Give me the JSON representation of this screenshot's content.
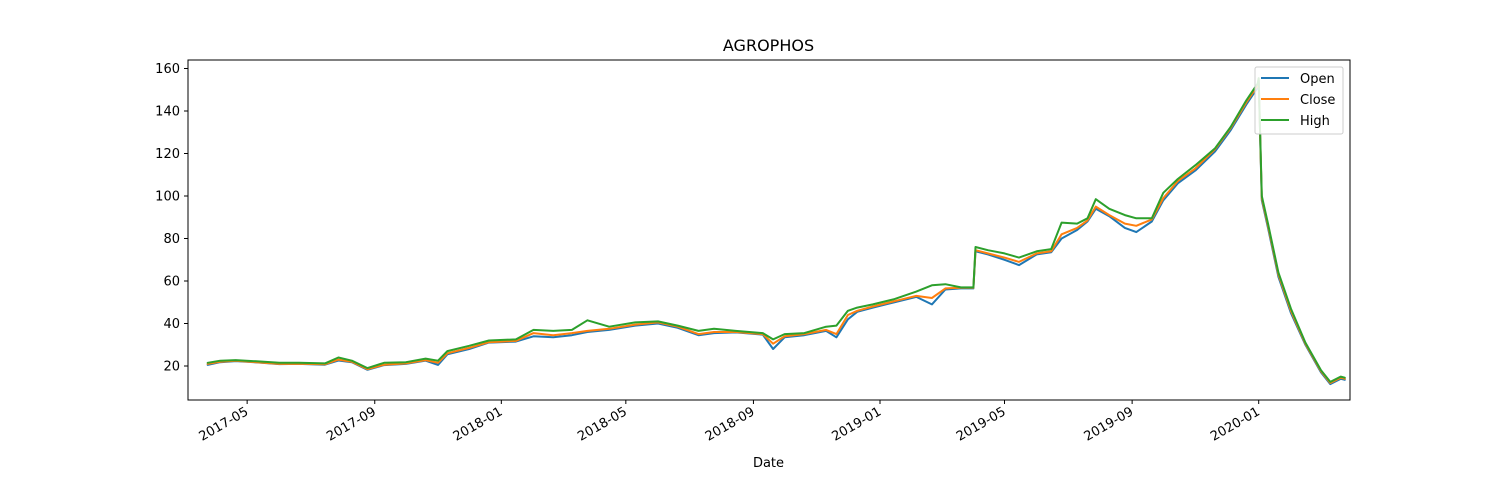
{
  "chart_data": {
    "type": "line",
    "title": "AGROPHOS",
    "xlabel": "Date",
    "ylabel": "",
    "x_axis_type": "date",
    "xlim": [
      "2017-03-05",
      "2020-03-29"
    ],
    "ylim": [
      4,
      164
    ],
    "yticks": [
      20,
      40,
      60,
      80,
      100,
      120,
      140,
      160
    ],
    "xticks": [
      {
        "date": "2017-05-01",
        "label": "2017-05"
      },
      {
        "date": "2017-09-01",
        "label": "2017-09"
      },
      {
        "date": "2018-01-01",
        "label": "2018-01"
      },
      {
        "date": "2018-05-01",
        "label": "2018-05"
      },
      {
        "date": "2018-09-01",
        "label": "2018-09"
      },
      {
        "date": "2019-01-01",
        "label": "2019-01"
      },
      {
        "date": "2019-05-01",
        "label": "2019-05"
      },
      {
        "date": "2019-09-01",
        "label": "2019-09"
      },
      {
        "date": "2020-01-01",
        "label": "2020-01"
      }
    ],
    "grid": false,
    "legend_position": "top-right",
    "series": [
      {
        "name": "Open",
        "color": "#1f77b4",
        "points": [
          [
            "2017-03-24",
            20.5
          ],
          [
            "2017-04-05",
            21.8
          ],
          [
            "2017-04-20",
            22.3
          ],
          [
            "2017-05-10",
            21.7
          ],
          [
            "2017-06-01",
            20.9
          ],
          [
            "2017-06-20",
            21.0
          ],
          [
            "2017-07-15",
            20.6
          ],
          [
            "2017-07-28",
            22.6
          ],
          [
            "2017-08-10",
            21.8
          ],
          [
            "2017-08-25",
            18.2
          ],
          [
            "2017-09-10",
            20.4
          ],
          [
            "2017-10-01",
            21.0
          ],
          [
            "2017-10-20",
            22.5
          ],
          [
            "2017-11-01",
            20.5
          ],
          [
            "2017-11-10",
            25.5
          ],
          [
            "2017-12-01",
            28.0
          ],
          [
            "2017-12-20",
            31.0
          ],
          [
            "2018-01-15",
            31.5
          ],
          [
            "2018-02-01",
            34.0
          ],
          [
            "2018-02-20",
            33.5
          ],
          [
            "2018-03-10",
            34.5
          ],
          [
            "2018-03-25",
            36.0
          ],
          [
            "2018-04-15",
            37.0
          ],
          [
            "2018-05-10",
            39.0
          ],
          [
            "2018-06-01",
            40.0
          ],
          [
            "2018-06-20",
            38.0
          ],
          [
            "2018-07-10",
            34.5
          ],
          [
            "2018-07-25",
            35.5
          ],
          [
            "2018-08-15",
            35.8
          ],
          [
            "2018-09-10",
            34.8
          ],
          [
            "2018-09-20",
            28.0
          ],
          [
            "2018-10-01",
            33.5
          ],
          [
            "2018-10-20",
            34.5
          ],
          [
            "2018-11-10",
            36.5
          ],
          [
            "2018-11-20",
            33.5
          ],
          [
            "2018-12-01",
            42.0
          ],
          [
            "2018-12-10",
            45.5
          ],
          [
            "2018-12-25",
            47.5
          ],
          [
            "2019-01-15",
            50.0
          ],
          [
            "2019-02-05",
            52.5
          ],
          [
            "2019-02-20",
            49.0
          ],
          [
            "2019-03-05",
            56.0
          ],
          [
            "2019-03-20",
            56.5
          ],
          [
            "2019-04-01",
            56.5
          ],
          [
            "2019-04-03",
            74.0
          ],
          [
            "2019-04-15",
            72.5
          ],
          [
            "2019-05-01",
            70.0
          ],
          [
            "2019-05-15",
            67.5
          ],
          [
            "2019-06-01",
            72.5
          ],
          [
            "2019-06-15",
            73.5
          ],
          [
            "2019-06-25",
            80.0
          ],
          [
            "2019-07-10",
            84.0
          ],
          [
            "2019-07-20",
            88.0
          ],
          [
            "2019-07-28",
            94.0
          ],
          [
            "2019-08-10",
            90.5
          ],
          [
            "2019-08-25",
            85.0
          ],
          [
            "2019-09-05",
            83.0
          ],
          [
            "2019-09-20",
            88.0
          ],
          [
            "2019-10-01",
            98.0
          ],
          [
            "2019-10-15",
            106.0
          ],
          [
            "2019-11-01",
            112.0
          ],
          [
            "2019-11-20",
            121.0
          ],
          [
            "2019-12-05",
            131.0
          ],
          [
            "2019-12-20",
            143.0
          ],
          [
            "2019-12-31",
            151.0
          ],
          [
            "2020-01-01",
            154.0
          ],
          [
            "2020-01-04",
            98.0
          ],
          [
            "2020-01-10",
            85.0
          ],
          [
            "2020-01-20",
            62.0
          ],
          [
            "2020-02-01",
            45.0
          ],
          [
            "2020-02-15",
            30.0
          ],
          [
            "2020-03-01",
            17.0
          ],
          [
            "2020-03-10",
            11.5
          ],
          [
            "2020-03-20",
            14.0
          ],
          [
            "2020-03-24",
            13.5
          ]
        ]
      },
      {
        "name": "Close",
        "color": "#ff7f0e",
        "points": [
          [
            "2017-03-24",
            21.0
          ],
          [
            "2017-04-05",
            22.0
          ],
          [
            "2017-04-20",
            22.5
          ],
          [
            "2017-05-10",
            21.8
          ],
          [
            "2017-06-01",
            21.0
          ],
          [
            "2017-06-20",
            21.1
          ],
          [
            "2017-07-15",
            20.8
          ],
          [
            "2017-07-28",
            23.0
          ],
          [
            "2017-08-10",
            22.0
          ],
          [
            "2017-08-25",
            18.5
          ],
          [
            "2017-09-10",
            20.6
          ],
          [
            "2017-10-01",
            21.2
          ],
          [
            "2017-10-20",
            22.8
          ],
          [
            "2017-11-01",
            21.5
          ],
          [
            "2017-11-10",
            26.0
          ],
          [
            "2017-12-01",
            28.5
          ],
          [
            "2017-12-20",
            31.2
          ],
          [
            "2018-01-15",
            31.8
          ],
          [
            "2018-02-01",
            35.5
          ],
          [
            "2018-02-20",
            34.5
          ],
          [
            "2018-03-10",
            35.5
          ],
          [
            "2018-03-25",
            36.5
          ],
          [
            "2018-04-15",
            37.5
          ],
          [
            "2018-05-10",
            39.5
          ],
          [
            "2018-06-01",
            40.5
          ],
          [
            "2018-06-20",
            38.5
          ],
          [
            "2018-07-10",
            35.0
          ],
          [
            "2018-07-25",
            36.0
          ],
          [
            "2018-08-15",
            36.0
          ],
          [
            "2018-09-10",
            35.0
          ],
          [
            "2018-09-20",
            30.5
          ],
          [
            "2018-10-01",
            34.0
          ],
          [
            "2018-10-20",
            35.0
          ],
          [
            "2018-11-10",
            37.0
          ],
          [
            "2018-11-20",
            35.0
          ],
          [
            "2018-12-01",
            44.0
          ],
          [
            "2018-12-10",
            46.0
          ],
          [
            "2018-12-25",
            48.0
          ],
          [
            "2019-01-15",
            50.5
          ],
          [
            "2019-02-05",
            53.0
          ],
          [
            "2019-02-20",
            52.0
          ],
          [
            "2019-03-05",
            56.5
          ],
          [
            "2019-03-20",
            56.8
          ],
          [
            "2019-04-01",
            56.8
          ],
          [
            "2019-04-03",
            74.5
          ],
          [
            "2019-04-15",
            73.0
          ],
          [
            "2019-05-01",
            71.0
          ],
          [
            "2019-05-15",
            69.0
          ],
          [
            "2019-06-01",
            73.0
          ],
          [
            "2019-06-15",
            74.0
          ],
          [
            "2019-06-25",
            82.0
          ],
          [
            "2019-07-10",
            85.0
          ],
          [
            "2019-07-20",
            88.5
          ],
          [
            "2019-07-28",
            95.0
          ],
          [
            "2019-08-10",
            91.0
          ],
          [
            "2019-08-25",
            87.0
          ],
          [
            "2019-09-05",
            86.0
          ],
          [
            "2019-09-20",
            89.0
          ],
          [
            "2019-10-01",
            99.0
          ],
          [
            "2019-10-15",
            107.0
          ],
          [
            "2019-11-01",
            113.0
          ],
          [
            "2019-11-20",
            122.0
          ],
          [
            "2019-12-05",
            132.0
          ],
          [
            "2019-12-20",
            144.0
          ],
          [
            "2019-12-31",
            152.0
          ],
          [
            "2020-01-01",
            154.5
          ],
          [
            "2020-01-04",
            99.0
          ],
          [
            "2020-01-10",
            86.0
          ],
          [
            "2020-01-20",
            63.0
          ],
          [
            "2020-02-01",
            46.0
          ],
          [
            "2020-02-15",
            30.5
          ],
          [
            "2020-03-01",
            17.5
          ],
          [
            "2020-03-10",
            12.0
          ],
          [
            "2020-03-20",
            14.5
          ],
          [
            "2020-03-24",
            14.0
          ]
        ]
      },
      {
        "name": "High",
        "color": "#2ca02c",
        "points": [
          [
            "2017-03-24",
            21.5
          ],
          [
            "2017-04-05",
            22.5
          ],
          [
            "2017-04-20",
            22.8
          ],
          [
            "2017-05-10",
            22.2
          ],
          [
            "2017-06-01",
            21.5
          ],
          [
            "2017-06-20",
            21.5
          ],
          [
            "2017-07-15",
            21.2
          ],
          [
            "2017-07-28",
            24.0
          ],
          [
            "2017-08-10",
            22.5
          ],
          [
            "2017-08-25",
            19.0
          ],
          [
            "2017-09-10",
            21.5
          ],
          [
            "2017-10-01",
            21.8
          ],
          [
            "2017-10-20",
            23.5
          ],
          [
            "2017-11-01",
            22.5
          ],
          [
            "2017-11-10",
            27.0
          ],
          [
            "2017-12-01",
            29.5
          ],
          [
            "2017-12-20",
            32.0
          ],
          [
            "2018-01-15",
            32.5
          ],
          [
            "2018-02-01",
            37.0
          ],
          [
            "2018-02-20",
            36.5
          ],
          [
            "2018-03-10",
            37.0
          ],
          [
            "2018-03-25",
            41.5
          ],
          [
            "2018-04-15",
            38.5
          ],
          [
            "2018-05-10",
            40.5
          ],
          [
            "2018-06-01",
            41.0
          ],
          [
            "2018-06-20",
            39.0
          ],
          [
            "2018-07-10",
            36.5
          ],
          [
            "2018-07-25",
            37.5
          ],
          [
            "2018-08-15",
            36.5
          ],
          [
            "2018-09-10",
            35.5
          ],
          [
            "2018-09-20",
            32.5
          ],
          [
            "2018-10-01",
            35.0
          ],
          [
            "2018-10-20",
            35.5
          ],
          [
            "2018-11-10",
            38.5
          ],
          [
            "2018-11-20",
            39.0
          ],
          [
            "2018-12-01",
            46.0
          ],
          [
            "2018-12-10",
            47.5
          ],
          [
            "2018-12-25",
            49.0
          ],
          [
            "2019-01-15",
            51.5
          ],
          [
            "2019-02-05",
            55.0
          ],
          [
            "2019-02-20",
            58.0
          ],
          [
            "2019-03-05",
            58.5
          ],
          [
            "2019-03-20",
            57.0
          ],
          [
            "2019-04-01",
            57.0
          ],
          [
            "2019-04-03",
            76.0
          ],
          [
            "2019-04-15",
            74.5
          ],
          [
            "2019-05-01",
            73.0
          ],
          [
            "2019-05-15",
            71.0
          ],
          [
            "2019-06-01",
            74.0
          ],
          [
            "2019-06-15",
            75.0
          ],
          [
            "2019-06-25",
            87.5
          ],
          [
            "2019-07-10",
            87.0
          ],
          [
            "2019-07-20",
            89.5
          ],
          [
            "2019-07-28",
            98.5
          ],
          [
            "2019-08-10",
            94.0
          ],
          [
            "2019-08-25",
            91.0
          ],
          [
            "2019-09-05",
            89.5
          ],
          [
            "2019-09-20",
            89.5
          ],
          [
            "2019-10-01",
            101.5
          ],
          [
            "2019-10-15",
            108.0
          ],
          [
            "2019-11-01",
            114.5
          ],
          [
            "2019-11-20",
            122.5
          ],
          [
            "2019-12-05",
            132.5
          ],
          [
            "2019-12-20",
            145.0
          ],
          [
            "2019-12-31",
            153.0
          ],
          [
            "2020-01-01",
            155.5
          ],
          [
            "2020-01-04",
            100.0
          ],
          [
            "2020-01-10",
            87.0
          ],
          [
            "2020-01-20",
            64.0
          ],
          [
            "2020-02-01",
            47.0
          ],
          [
            "2020-02-15",
            31.0
          ],
          [
            "2020-03-01",
            18.0
          ],
          [
            "2020-03-10",
            12.5
          ],
          [
            "2020-03-20",
            15.0
          ],
          [
            "2020-03-24",
            14.5
          ]
        ]
      }
    ]
  }
}
